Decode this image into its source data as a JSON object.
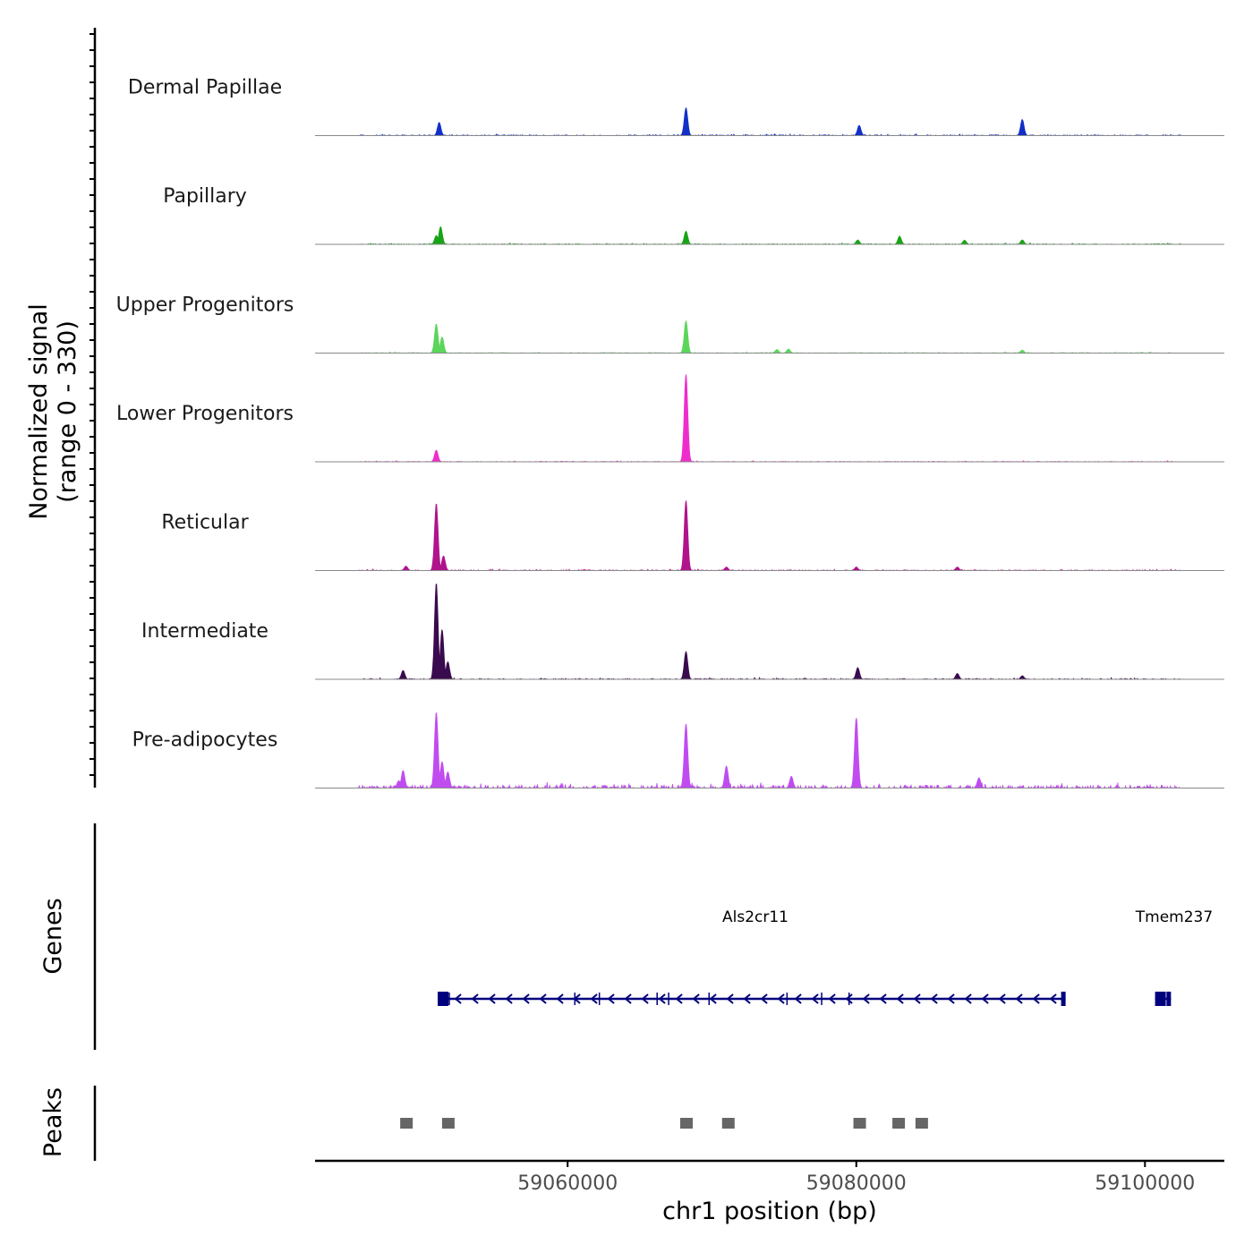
{
  "chart_data": {
    "type": "area",
    "title": "",
    "ylabel_line1": "Normalized signal",
    "ylabel_line2": "(range 0 - 330)",
    "y_range": [
      0,
      330
    ],
    "xlabel": "chr1 position (bp)",
    "xlim": [
      59042500,
      59105500
    ],
    "x_ticks": [
      59060000,
      59080000,
      59100000
    ],
    "x_tick_labels": [
      "59060000",
      "59080000",
      "59100000"
    ],
    "series": [
      {
        "name": "Dermal Papillae",
        "color": "#1230c8",
        "peaks": [
          [
            59051100,
            45
          ],
          [
            59068200,
            95
          ],
          [
            59080200,
            35
          ],
          [
            59091500,
            55
          ]
        ],
        "noise": 6
      },
      {
        "name": "Papillary",
        "color": "#1aa318",
        "peaks": [
          [
            59050900,
            30
          ],
          [
            59051200,
            60
          ],
          [
            59068200,
            45
          ],
          [
            59080100,
            15
          ],
          [
            59083000,
            28
          ],
          [
            59087500,
            14
          ],
          [
            59091500,
            15
          ]
        ],
        "noise": 5
      },
      {
        "name": "Upper Progenitors",
        "color": "#5bd65b",
        "peaks": [
          [
            59050900,
            100
          ],
          [
            59051300,
            55
          ],
          [
            59068200,
            110
          ],
          [
            59074500,
            12
          ],
          [
            59075300,
            14
          ],
          [
            59091500,
            10
          ]
        ],
        "noise": 4
      },
      {
        "name": "Lower Progenitors",
        "color": "#ee2ecc",
        "peaks": [
          [
            59050900,
            40
          ],
          [
            59068200,
            300
          ]
        ],
        "noise": 4
      },
      {
        "name": "Reticular",
        "color": "#b0138c",
        "peaks": [
          [
            59048800,
            15
          ],
          [
            59050900,
            230
          ],
          [
            59051400,
            50
          ],
          [
            59068200,
            240
          ],
          [
            59071000,
            12
          ],
          [
            59080000,
            12
          ],
          [
            59087000,
            12
          ]
        ],
        "noise": 5
      },
      {
        "name": "Intermediate",
        "color": "#3a0a4f",
        "peaks": [
          [
            59048600,
            30
          ],
          [
            59050900,
            330
          ],
          [
            59051300,
            170
          ],
          [
            59051700,
            60
          ],
          [
            59068200,
            95
          ],
          [
            59080100,
            40
          ],
          [
            59087000,
            20
          ],
          [
            59091500,
            12
          ]
        ],
        "noise": 6
      },
      {
        "name": "Pre-adipocytes",
        "color": "#c04cf0",
        "peaks": [
          [
            59048300,
            25
          ],
          [
            59048600,
            60
          ],
          [
            59050900,
            260
          ],
          [
            59051300,
            90
          ],
          [
            59051700,
            55
          ],
          [
            59068200,
            220
          ],
          [
            59071000,
            75
          ],
          [
            59080000,
            240
          ],
          [
            59075500,
            40
          ],
          [
            59088500,
            35
          ]
        ],
        "noise": 20
      }
    ],
    "genes_track_label": "Genes",
    "genes": [
      {
        "name": "Als2cr11",
        "start": 59051000,
        "end": 59094500,
        "strand": "-",
        "color": "#00007e"
      },
      {
        "name": "Tmem237",
        "start": 59100700,
        "end": 59101800,
        "strand": "-",
        "color": "#00007e"
      }
    ],
    "peaks_track_label": "Peaks",
    "peak_regions": [
      [
        59048400,
        59049200
      ],
      [
        59051300,
        59052100
      ],
      [
        59067800,
        59068600
      ],
      [
        59070700,
        59071500
      ],
      [
        59079800,
        59080600
      ],
      [
        59082500,
        59083300
      ],
      [
        59084100,
        59084900
      ]
    ],
    "peak_color": "#666666"
  }
}
